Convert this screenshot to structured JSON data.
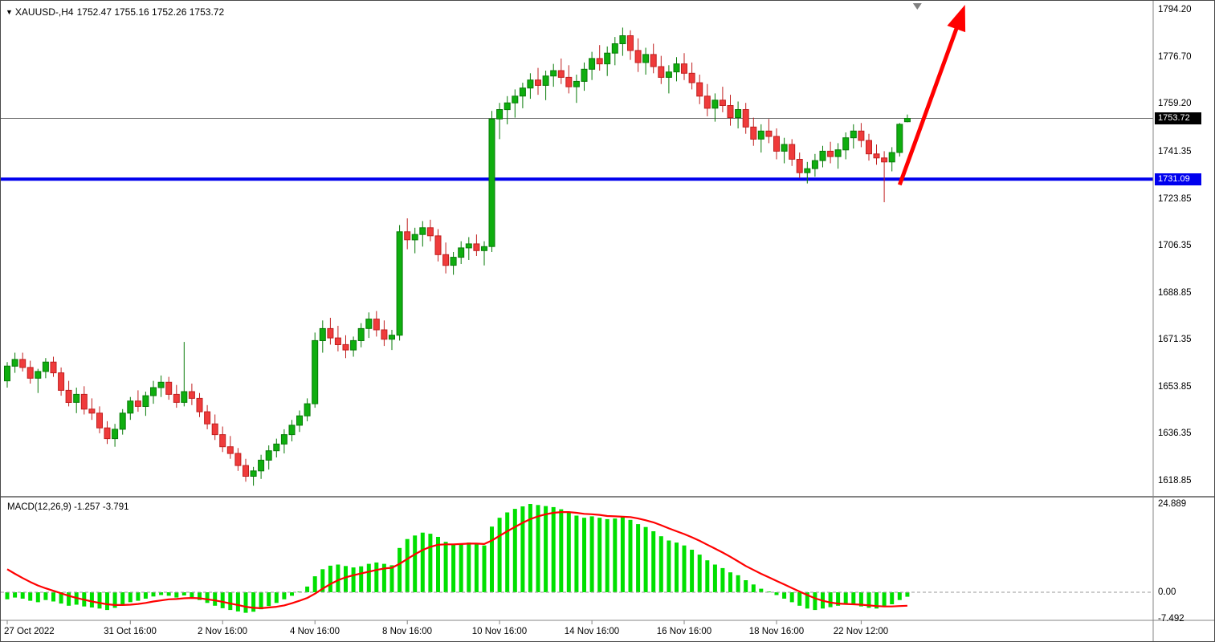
{
  "header": {
    "symbol_period": "XAUUSD-,H4",
    "ohlc": "1752.47 1755.16 1752.26 1753.72",
    "dropdown_icon": "▼"
  },
  "macd": {
    "label": "MACD(12,26,9) -1.257 -3.791"
  },
  "badges": {
    "current_price": "1753.72",
    "level_price": "1731.09"
  },
  "price_axis_labels": [
    {
      "text": "1794.20",
      "value": 1794.2
    },
    {
      "text": "1776.70",
      "value": 1776.7
    },
    {
      "text": "1759.20",
      "value": 1759.2
    },
    {
      "text": "1741.35",
      "value": 1741.35
    },
    {
      "text": "1723.85",
      "value": 1723.85
    },
    {
      "text": "1706.35",
      "value": 1706.35
    },
    {
      "text": "1688.85",
      "value": 1688.85
    },
    {
      "text": "1671.35",
      "value": 1671.35
    },
    {
      "text": "1653.85",
      "value": 1653.85
    },
    {
      "text": "1636.35",
      "value": 1636.35
    },
    {
      "text": "1618.85",
      "value": 1618.85
    }
  ],
  "macd_axis_labels": [
    {
      "text": "24.889",
      "value": 24.889
    },
    {
      "text": "0.00",
      "value": 0
    },
    {
      "text": "-7.492",
      "value": -7.492
    }
  ],
  "time_axis_labels": [
    {
      "text": "27 Oct 2022",
      "bar": 0
    },
    {
      "text": "31 Oct 16:00",
      "bar": 16
    },
    {
      "text": "2 Nov 16:00",
      "bar": 28
    },
    {
      "text": "4 Nov 16:00",
      "bar": 40
    },
    {
      "text": "8 Nov 16:00",
      "bar": 52
    },
    {
      "text": "10 Nov 16:00",
      "bar": 64
    },
    {
      "text": "14 Nov 16:00",
      "bar": 76
    },
    {
      "text": "16 Nov 16:00",
      "bar": 88
    },
    {
      "text": "18 Nov 16:00",
      "bar": 100
    },
    {
      "text": "22 Nov 12:00",
      "bar": 111
    }
  ],
  "chart_data": {
    "type": "candlestick",
    "symbol": "XAUUSD-",
    "timeframe": "H4",
    "title": "XAUUSD- H4 with MACD(12,26,9)",
    "price_ylim": [
      1612.0,
      1797.0
    ],
    "grid": false,
    "last_ohlc": {
      "open": 1752.47,
      "high": 1755.16,
      "low": 1752.26,
      "close": 1753.72
    },
    "colors": {
      "up": "#0fae0f",
      "up_border": "#077a07",
      "down": "#ef3b3b",
      "down_border": "#c01f1f",
      "histogram": "#00e000",
      "signal": "#ff0000",
      "support": "#0000ee",
      "arrow": "#ff0000",
      "current_price_line": "#6b6b6b",
      "badge_black": "#000000"
    },
    "candles": [
      [
        1656.0,
        1663.0,
        1653.5,
        1661.5
      ],
      [
        1661.5,
        1666.5,
        1659.0,
        1664.0
      ],
      [
        1664.0,
        1666.5,
        1659.5,
        1661.0
      ],
      [
        1661.0,
        1663.5,
        1655.0,
        1657.0
      ],
      [
        1657.0,
        1660.5,
        1651.5,
        1659.5
      ],
      [
        1659.5,
        1664.5,
        1657.0,
        1663.0
      ],
      [
        1663.0,
        1665.0,
        1657.5,
        1659.0
      ],
      [
        1659.0,
        1661.0,
        1650.5,
        1652.5
      ],
      [
        1652.5,
        1656.0,
        1646.5,
        1648.0
      ],
      [
        1648.0,
        1653.5,
        1644.0,
        1651.0
      ],
      [
        1651.0,
        1654.0,
        1643.5,
        1645.5
      ],
      [
        1645.5,
        1649.5,
        1641.5,
        1644.0
      ],
      [
        1644.0,
        1646.5,
        1636.5,
        1638.5
      ],
      [
        1638.5,
        1641.0,
        1632.5,
        1634.5
      ],
      [
        1634.5,
        1640.0,
        1631.5,
        1638.0
      ],
      [
        1638.0,
        1645.5,
        1636.0,
        1644.0
      ],
      [
        1644.0,
        1650.0,
        1641.5,
        1648.5
      ],
      [
        1648.5,
        1652.5,
        1644.5,
        1646.5
      ],
      [
        1646.5,
        1652.0,
        1643.0,
        1650.5
      ],
      [
        1650.5,
        1656.0,
        1647.5,
        1653.5
      ],
      [
        1653.5,
        1658.0,
        1650.0,
        1655.5
      ],
      [
        1655.5,
        1657.5,
        1649.0,
        1651.0
      ],
      [
        1651.0,
        1654.5,
        1646.0,
        1648.0
      ],
      [
        1648.0,
        1670.5,
        1646.5,
        1652.0
      ],
      [
        1652.0,
        1655.0,
        1647.0,
        1649.5
      ],
      [
        1649.5,
        1651.5,
        1642.5,
        1644.5
      ],
      [
        1644.5,
        1647.0,
        1638.0,
        1640.0
      ],
      [
        1640.0,
        1643.5,
        1634.0,
        1636.0
      ],
      [
        1636.0,
        1639.0,
        1629.5,
        1631.5
      ],
      [
        1631.5,
        1635.5,
        1627.0,
        1629.0
      ],
      [
        1629.0,
        1631.0,
        1622.5,
        1624.5
      ],
      [
        1624.5,
        1627.0,
        1618.5,
        1620.5
      ],
      [
        1620.5,
        1624.0,
        1617.0,
        1622.5
      ],
      [
        1622.5,
        1628.5,
        1619.5,
        1626.5
      ],
      [
        1626.5,
        1632.0,
        1623.0,
        1630.0
      ],
      [
        1630.0,
        1634.5,
        1627.5,
        1632.5
      ],
      [
        1632.5,
        1638.0,
        1629.0,
        1636.0
      ],
      [
        1636.0,
        1641.5,
        1633.5,
        1639.5
      ],
      [
        1639.5,
        1645.0,
        1637.0,
        1643.0
      ],
      [
        1643.0,
        1649.5,
        1641.0,
        1647.5
      ],
      [
        1647.5,
        1674.0,
        1646.0,
        1671.0
      ],
      [
        1671.0,
        1678.5,
        1666.5,
        1675.5
      ],
      [
        1675.5,
        1679.5,
        1669.5,
        1672.0
      ],
      [
        1672.0,
        1676.5,
        1667.0,
        1669.5
      ],
      [
        1669.5,
        1673.0,
        1664.5,
        1667.5
      ],
      [
        1667.5,
        1672.5,
        1665.0,
        1671.0
      ],
      [
        1671.0,
        1677.5,
        1668.5,
        1675.5
      ],
      [
        1675.5,
        1681.5,
        1672.0,
        1679.0
      ],
      [
        1679.0,
        1682.0,
        1672.5,
        1675.0
      ],
      [
        1675.0,
        1678.5,
        1669.0,
        1671.5
      ],
      [
        1671.5,
        1675.0,
        1667.5,
        1673.0
      ],
      [
        1673.0,
        1714.0,
        1671.0,
        1711.5
      ],
      [
        1711.5,
        1716.5,
        1705.0,
        1708.5
      ],
      [
        1708.5,
        1713.0,
        1703.5,
        1710.5
      ],
      [
        1710.5,
        1715.5,
        1706.0,
        1713.0
      ],
      [
        1713.0,
        1716.0,
        1708.0,
        1710.0
      ],
      [
        1710.0,
        1712.5,
        1700.5,
        1703.0
      ],
      [
        1703.0,
        1707.5,
        1696.0,
        1699.0
      ],
      [
        1699.0,
        1704.0,
        1695.5,
        1702.0
      ],
      [
        1702.0,
        1708.0,
        1699.5,
        1705.5
      ],
      [
        1705.5,
        1709.5,
        1701.0,
        1707.0
      ],
      [
        1707.0,
        1710.5,
        1702.5,
        1704.5
      ],
      [
        1704.5,
        1708.0,
        1699.0,
        1706.0
      ],
      [
        1706.0,
        1756.5,
        1704.0,
        1753.5
      ],
      [
        1753.5,
        1759.5,
        1746.0,
        1757.0
      ],
      [
        1757.0,
        1762.0,
        1751.5,
        1759.5
      ],
      [
        1759.5,
        1764.5,
        1754.0,
        1762.0
      ],
      [
        1762.0,
        1767.0,
        1757.5,
        1765.0
      ],
      [
        1765.0,
        1770.5,
        1761.0,
        1768.0
      ],
      [
        1768.0,
        1772.5,
        1762.5,
        1766.0
      ],
      [
        1766.0,
        1771.5,
        1760.5,
        1769.5
      ],
      [
        1769.5,
        1774.0,
        1765.5,
        1771.5
      ],
      [
        1771.5,
        1776.0,
        1766.5,
        1769.0
      ],
      [
        1769.0,
        1773.5,
        1763.0,
        1765.5
      ],
      [
        1765.5,
        1770.0,
        1759.5,
        1767.5
      ],
      [
        1767.5,
        1774.5,
        1764.0,
        1772.0
      ],
      [
        1772.0,
        1778.5,
        1768.0,
        1776.0
      ],
      [
        1776.0,
        1781.0,
        1771.5,
        1774.0
      ],
      [
        1774.0,
        1780.5,
        1769.5,
        1778.0
      ],
      [
        1778.0,
        1784.0,
        1773.5,
        1781.5
      ],
      [
        1781.5,
        1787.5,
        1777.0,
        1784.5
      ],
      [
        1784.5,
        1786.5,
        1775.5,
        1779.0
      ],
      [
        1779.0,
        1783.5,
        1771.0,
        1774.5
      ],
      [
        1774.5,
        1780.0,
        1770.0,
        1777.5
      ],
      [
        1777.5,
        1781.5,
        1770.5,
        1773.0
      ],
      [
        1773.0,
        1777.0,
        1766.5,
        1769.0
      ],
      [
        1769.0,
        1773.5,
        1763.0,
        1771.0
      ],
      [
        1771.0,
        1776.5,
        1767.5,
        1774.0
      ],
      [
        1774.0,
        1778.0,
        1768.0,
        1770.5
      ],
      [
        1770.5,
        1774.5,
        1764.5,
        1767.0
      ],
      [
        1767.0,
        1770.0,
        1759.0,
        1762.0
      ],
      [
        1762.0,
        1766.5,
        1754.5,
        1757.5
      ],
      [
        1757.5,
        1763.0,
        1752.5,
        1760.5
      ],
      [
        1760.5,
        1765.5,
        1756.0,
        1758.5
      ],
      [
        1758.5,
        1762.5,
        1751.0,
        1754.0
      ],
      [
        1754.0,
        1760.0,
        1750.0,
        1757.0
      ],
      [
        1757.0,
        1759.5,
        1748.0,
        1750.5
      ],
      [
        1750.5,
        1754.0,
        1743.5,
        1746.0
      ],
      [
        1746.0,
        1751.5,
        1741.0,
        1749.0
      ],
      [
        1749.0,
        1753.5,
        1744.5,
        1747.0
      ],
      [
        1747.0,
        1750.0,
        1738.5,
        1741.5
      ],
      [
        1741.5,
        1746.5,
        1737.0,
        1744.0
      ],
      [
        1744.0,
        1746.0,
        1736.0,
        1738.5
      ],
      [
        1738.5,
        1741.0,
        1731.5,
        1733.5
      ],
      [
        1733.5,
        1737.5,
        1729.5,
        1735.0
      ],
      [
        1735.0,
        1740.5,
        1732.0,
        1738.0
      ],
      [
        1738.0,
        1743.5,
        1735.5,
        1741.5
      ],
      [
        1741.5,
        1745.0,
        1737.0,
        1739.5
      ],
      [
        1739.5,
        1744.5,
        1735.0,
        1742.0
      ],
      [
        1742.0,
        1748.5,
        1738.5,
        1746.5
      ],
      [
        1746.5,
        1751.5,
        1742.5,
        1749.0
      ],
      [
        1749.0,
        1752.0,
        1743.0,
        1745.5
      ],
      [
        1745.5,
        1748.0,
        1738.0,
        1740.5
      ],
      [
        1740.5,
        1744.0,
        1736.5,
        1739.0
      ],
      [
        1739.0,
        1741.5,
        1722.5,
        1737.5
      ],
      [
        1737.5,
        1743.0,
        1734.0,
        1741.0
      ],
      [
        1741.0,
        1752.0,
        1739.5,
        1751.5
      ],
      [
        1752.47,
        1755.16,
        1752.26,
        1753.72
      ]
    ],
    "macd": {
      "params": [
        12,
        26,
        9
      ],
      "main_last": -1.257,
      "signal_last": -3.791,
      "ylim": [
        -7.492,
        24.889
      ],
      "histogram": [
        -2.0,
        -1.5,
        -1.8,
        -2.4,
        -2.8,
        -2.2,
        -2.6,
        -3.2,
        -3.8,
        -3.5,
        -4.0,
        -4.3,
        -4.6,
        -5.0,
        -4.4,
        -3.6,
        -2.8,
        -2.4,
        -1.8,
        -1.2,
        -0.8,
        -1.0,
        -1.5,
        -0.9,
        -1.4,
        -2.2,
        -3.0,
        -3.8,
        -4.5,
        -5.0,
        -5.4,
        -5.8,
        -5.5,
        -4.8,
        -3.9,
        -3.0,
        -2.0,
        -1.0,
        0.2,
        1.6,
        4.5,
        6.5,
        7.5,
        7.8,
        7.4,
        7.0,
        7.3,
        8.0,
        8.4,
        8.0,
        7.6,
        12.5,
        15.0,
        16.0,
        16.8,
        16.5,
        15.6,
        14.2,
        13.5,
        13.8,
        14.0,
        13.6,
        13.2,
        18.5,
        21.0,
        22.5,
        23.5,
        24.2,
        24.889,
        24.6,
        24.3,
        24.0,
        23.4,
        22.6,
        21.6,
        21.0,
        21.4,
        21.0,
        20.6,
        20.8,
        21.2,
        20.4,
        19.2,
        18.4,
        17.2,
        15.8,
        14.6,
        14.0,
        13.2,
        12.0,
        10.6,
        9.0,
        7.8,
        6.8,
        5.6,
        4.8,
        3.4,
        2.2,
        1.0,
        0.2,
        -0.8,
        -1.8,
        -2.8,
        -3.8,
        -4.6,
        -5.0,
        -4.6,
        -4.2,
        -3.8,
        -3.4,
        -3.6,
        -4.0,
        -4.4,
        -4.6,
        -4.2,
        -3.4,
        -2.2,
        -1.257
      ],
      "signal": [
        6.5,
        5.2,
        4.0,
        2.9,
        1.9,
        1.1,
        0.4,
        -0.3,
        -1.0,
        -1.6,
        -2.1,
        -2.6,
        -3.0,
        -3.4,
        -3.6,
        -3.6,
        -3.5,
        -3.3,
        -3.0,
        -2.6,
        -2.3,
        -2.0,
        -1.9,
        -1.7,
        -1.6,
        -1.7,
        -2.0,
        -2.3,
        -2.7,
        -3.2,
        -3.6,
        -4.1,
        -4.4,
        -4.5,
        -4.3,
        -4.1,
        -3.7,
        -3.1,
        -2.4,
        -1.6,
        -0.4,
        1.0,
        2.3,
        3.4,
        4.2,
        4.8,
        5.3,
        5.8,
        6.3,
        6.7,
        6.9,
        8.0,
        9.4,
        10.7,
        11.9,
        12.8,
        13.4,
        13.5,
        13.5,
        13.6,
        13.7,
        13.7,
        13.6,
        14.6,
        15.9,
        17.2,
        18.4,
        19.6,
        20.6,
        21.4,
        22.0,
        22.4,
        22.6,
        22.6,
        22.4,
        22.1,
        22.0,
        21.8,
        21.5,
        21.4,
        21.3,
        21.2,
        20.8,
        20.3,
        19.7,
        18.9,
        18.0,
        17.2,
        16.4,
        15.5,
        14.5,
        13.4,
        12.3,
        11.2,
        10.0,
        8.7,
        7.4,
        6.3,
        5.2,
        4.2,
        3.2,
        2.2,
        1.2,
        0.2,
        -0.8,
        -1.7,
        -2.4,
        -2.9,
        -3.2,
        -3.3,
        -3.4,
        -3.5,
        -3.7,
        -3.9,
        -4.0,
        -4.0,
        -3.9,
        -3.791
      ]
    },
    "annotations": {
      "support_line": {
        "price": 1731.09,
        "color": "#0000ee",
        "width": 4
      },
      "current_price_line": {
        "price": 1753.72,
        "color": "#6b6b6b",
        "width": 1
      },
      "arrow": {
        "from": {
          "bar": 116,
          "price": 1729.0
        },
        "to": {
          "bar": 124.5,
          "price": 1796.0
        },
        "color": "#ff0000",
        "width": 5
      },
      "top_marker": {
        "bar": 118.3,
        "color": "#808080"
      }
    }
  }
}
